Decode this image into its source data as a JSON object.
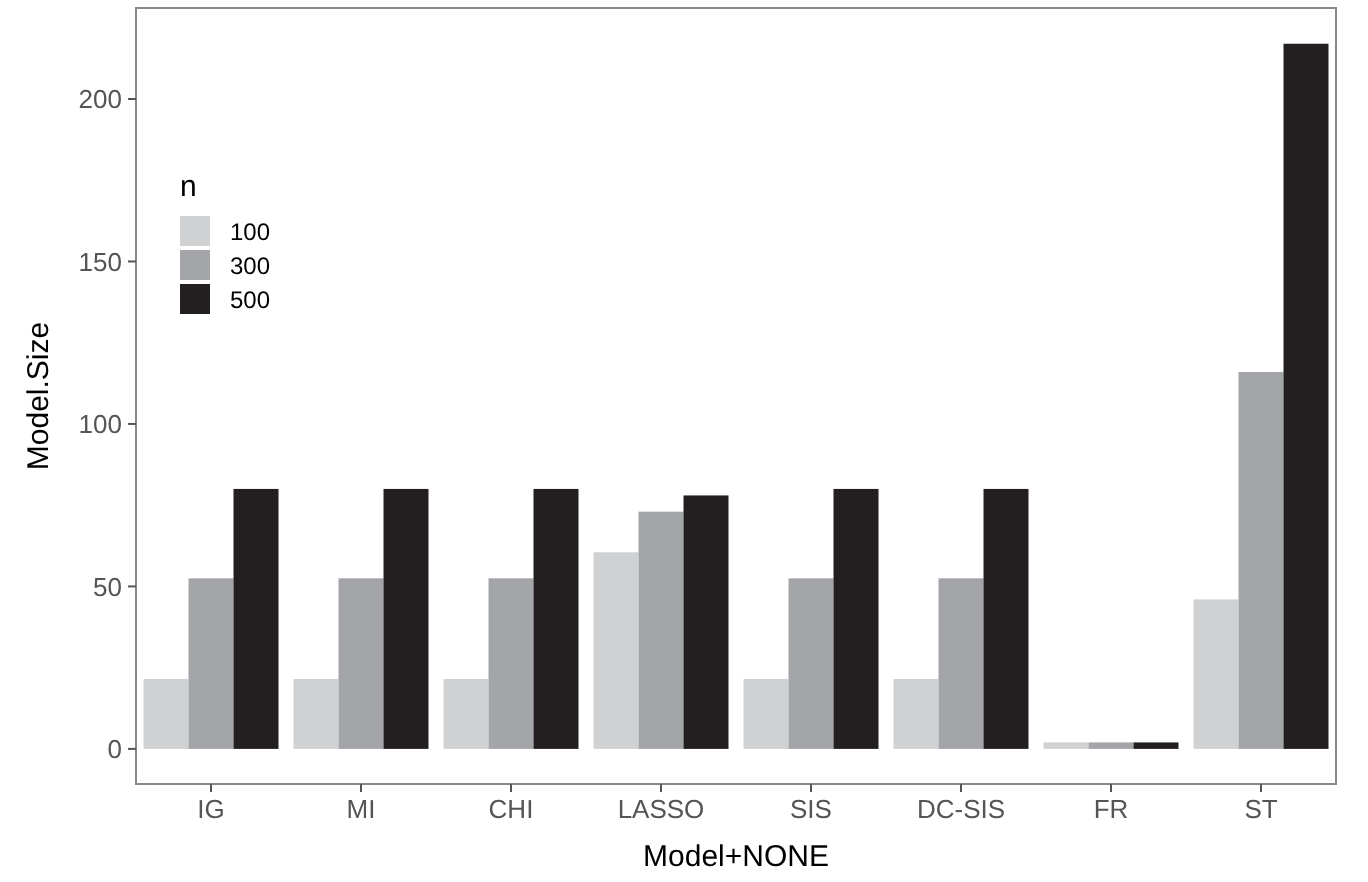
{
  "chart_data": {
    "type": "bar",
    "xlabel": "Model+NONE",
    "ylabel": "Model.Size",
    "legend_title": "n",
    "categories": [
      "IG",
      "MI",
      "CHI",
      "LASSO",
      "SIS",
      "DC-SIS",
      "FR",
      "ST"
    ],
    "series": [
      {
        "name": "100",
        "color": "#d0d1d3",
        "values": [
          21.5,
          21.5,
          21.5,
          60.5,
          21.5,
          21.5,
          2,
          46
        ]
      },
      {
        "name": "300",
        "color": "#a4a5a8",
        "values": [
          52.5,
          52.5,
          52.5,
          73,
          52.5,
          52.5,
          2,
          116
        ]
      },
      {
        "name": "500",
        "color": "#231f20",
        "values": [
          80,
          80,
          80,
          78,
          80,
          80,
          2,
          217
        ]
      }
    ],
    "ylim": [
      -10.8,
      228
    ],
    "yticks": [
      0,
      50,
      100,
      150,
      200
    ],
    "grid": false,
    "legend": "top left"
  }
}
